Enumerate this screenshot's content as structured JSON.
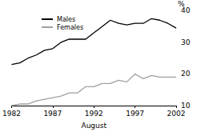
{
  "chart_data": {
    "type": "line",
    "x": [
      1982,
      1983,
      1984,
      1985,
      1986,
      1987,
      1988,
      1989,
      1990,
      1991,
      1992,
      1993,
      1994,
      1995,
      1996,
      1997,
      1998,
      1999,
      2000,
      2001,
      2002
    ],
    "x_label": "August",
    "y_label": "%",
    "series": [
      {
        "name": "Males",
        "color": "#000000",
        "line_style": "solid",
        "values": [
          23,
          23.5,
          25,
          26,
          27.5,
          28,
          30,
          31,
          31,
          31,
          33,
          35,
          37,
          36,
          35.5,
          36,
          36,
          37.5,
          37,
          36,
          34.5
        ]
      },
      {
        "name": "Females",
        "color": "#a0a0a0",
        "line_style": "solid",
        "values": [
          10,
          10.5,
          10.5,
          11.5,
          12,
          12.5,
          13,
          14,
          14,
          16,
          16,
          17,
          17,
          18,
          17.5,
          20,
          18.5,
          19.5,
          19,
          19,
          19
        ]
      }
    ],
    "xlim": [
      1982,
      2002
    ],
    "xticks": [
      1982,
      1987,
      1992,
      1997,
      2002
    ],
    "ylim": [
      10,
      40
    ],
    "yticks": [
      10,
      20,
      30,
      40
    ],
    "grid": false,
    "legend": "top-left"
  }
}
